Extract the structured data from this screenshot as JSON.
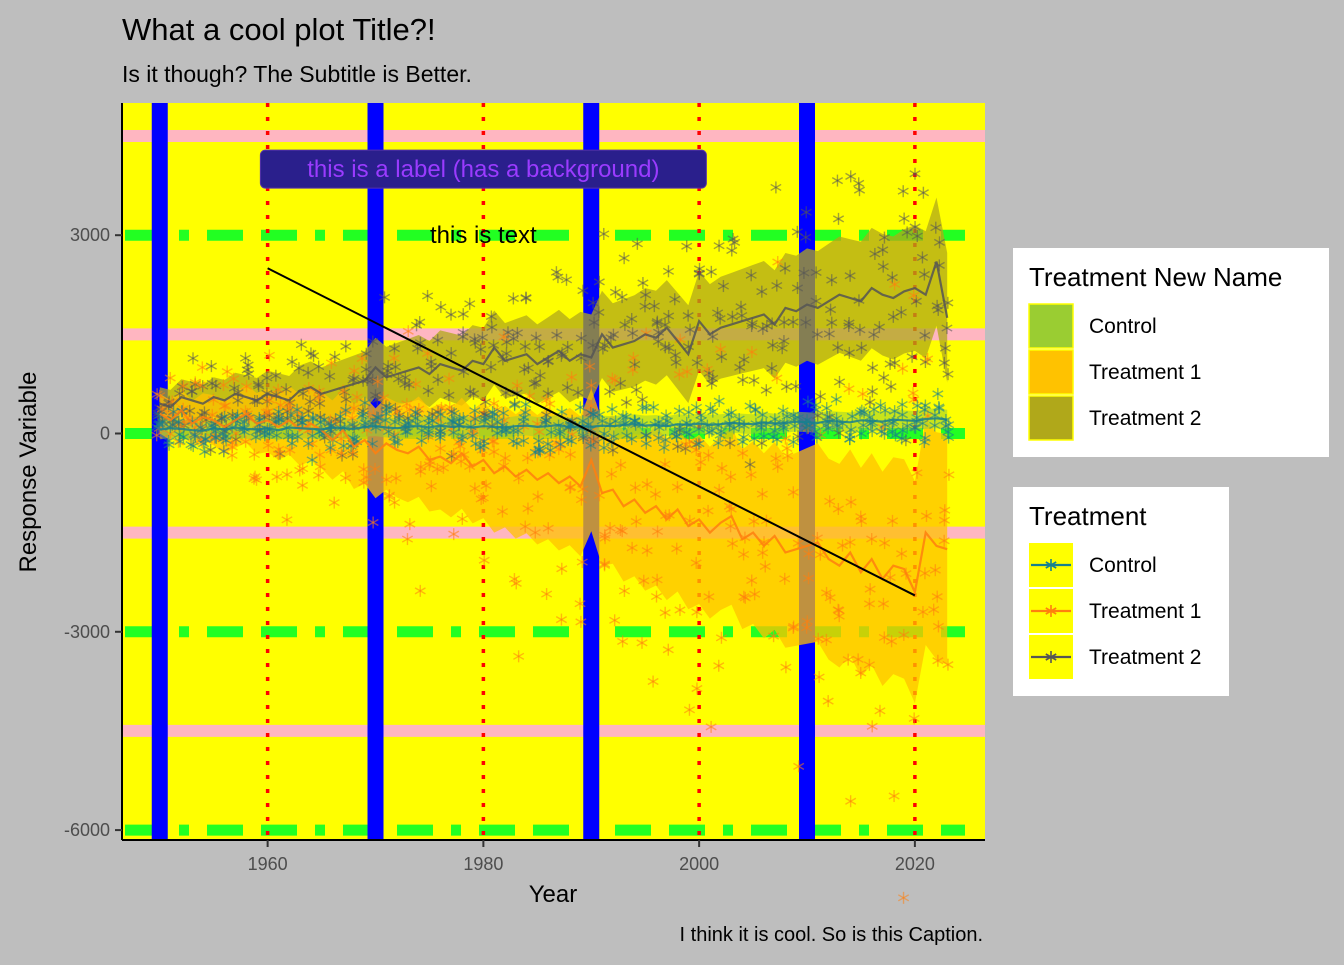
{
  "chart_data": {
    "type": "line",
    "title": "What a cool plot Title?!",
    "subtitle": "Is it though? The Subtitle is Better.",
    "caption": "I think it is cool. So is this Caption.",
    "xlabel": "Year",
    "ylabel": "Response Variable",
    "xlim": [
      1946.5,
      2026.5
    ],
    "ylim": [
      -6150,
      5000
    ],
    "x_ticks": [
      1960,
      1980,
      2000,
      2020
    ],
    "y_ticks": [
      3000,
      0,
      -3000,
      -6000
    ],
    "colors": {
      "plot_background": "#ffff00",
      "page_background": "#bebebe",
      "blue_band": "#0000ff",
      "pink_line": "#ffb6c1",
      "green_dash": "#22ff22",
      "red_dot": "#ff0000",
      "control": "#17808e",
      "treatment1": "#ff7f0e",
      "treatment2": "#555555",
      "fill_control": "#9acd32",
      "fill_treatment1": "#ffc200",
      "fill_treatment2": "#b0a81a"
    },
    "reference_lines": {
      "blue_vertical_x": [
        1950,
        1970,
        1990,
        2010
      ],
      "red_dotted_vertical_x": [
        1960,
        1980,
        2000,
        2020
      ],
      "pink_horizontal_y": [
        4500,
        1500,
        -1500,
        -4500
      ],
      "green_dashed_horizontal_y": [
        3000,
        0,
        -3000,
        -6000
      ]
    },
    "trend_segment": {
      "x": [
        1960,
        2020
      ],
      "y": [
        2500,
        -2450
      ]
    },
    "annotations": {
      "label_text": "this is a label (has a background)",
      "label_x": 1980,
      "label_y": 4000,
      "text_text": "this is text",
      "text_x": 1980,
      "text_y": 3000
    },
    "years": [
      1950,
      1951,
      1952,
      1953,
      1954,
      1955,
      1956,
      1957,
      1958,
      1959,
      1960,
      1961,
      1962,
      1963,
      1964,
      1965,
      1966,
      1967,
      1968,
      1969,
      1970,
      1971,
      1972,
      1973,
      1974,
      1975,
      1976,
      1977,
      1978,
      1979,
      1980,
      1981,
      1982,
      1983,
      1984,
      1985,
      1986,
      1987,
      1988,
      1989,
      1990,
      1991,
      1992,
      1993,
      1994,
      1995,
      1996,
      1997,
      1998,
      1999,
      2000,
      2001,
      2002,
      2003,
      2004,
      2005,
      2006,
      2007,
      2008,
      2009,
      2010,
      2011,
      2012,
      2013,
      2014,
      2015,
      2016,
      2017,
      2018,
      2019,
      2020,
      2021,
      2022,
      2023
    ],
    "series": [
      {
        "name": "Control",
        "values": [
          60,
          80,
          70,
          50,
          40,
          80,
          60,
          90,
          70,
          60,
          80,
          50,
          90,
          80,
          70,
          60,
          90,
          80,
          70,
          100,
          110,
          90,
          80,
          100,
          110,
          90,
          120,
          100,
          110,
          90,
          110,
          100,
          90,
          110,
          120,
          100,
          110,
          130,
          90,
          110,
          100,
          120,
          110,
          130,
          140,
          120,
          130,
          110,
          140,
          130,
          150,
          130,
          140,
          160,
          150,
          140,
          170,
          150,
          160,
          180,
          170,
          160,
          190,
          180,
          170,
          200,
          190,
          180,
          210,
          200,
          190,
          220,
          230,
          210
        ],
        "band_halfwidth": [
          150,
          150,
          150,
          150,
          150,
          150,
          150,
          150,
          150,
          150,
          150,
          150,
          150,
          150,
          150,
          150,
          150,
          150,
          150,
          150,
          150,
          150,
          150,
          150,
          150,
          150,
          150,
          150,
          150,
          150,
          150,
          150,
          150,
          150,
          150,
          150,
          150,
          150,
          150,
          150,
          150,
          150,
          150,
          150,
          150,
          150,
          150,
          150,
          150,
          150,
          150,
          150,
          150,
          150,
          150,
          150,
          150,
          150,
          150,
          150,
          150,
          150,
          150,
          150,
          150,
          150,
          150,
          150,
          150,
          150,
          150,
          150,
          150,
          150
        ]
      },
      {
        "name": "Treatment 1",
        "values": [
          300,
          200,
          350,
          150,
          250,
          200,
          100,
          200,
          300,
          150,
          200,
          100,
          200,
          50,
          150,
          50,
          -100,
          50,
          -200,
          -100,
          -300,
          -150,
          -250,
          -300,
          -200,
          -400,
          -350,
          -450,
          -300,
          -500,
          -400,
          -600,
          -500,
          -650,
          -550,
          -700,
          -600,
          -750,
          -650,
          -800,
          -400,
          -900,
          -850,
          -1100,
          -1000,
          -1200,
          -1100,
          -1300,
          -1150,
          -1400,
          -1300,
          -1500,
          -1350,
          -1250,
          -1600,
          -1500,
          -1700,
          -1550,
          -1800,
          -1750,
          -1700,
          -1650,
          -1900,
          -2000,
          -1800,
          -2100,
          -1900,
          -2200,
          -2000,
          -2050,
          -2400,
          -1500,
          -1700,
          -1750
        ],
        "band_halfwidth": [
          300,
          300,
          320,
          340,
          360,
          380,
          400,
          420,
          440,
          460,
          480,
          500,
          520,
          540,
          560,
          580,
          600,
          620,
          640,
          660,
          680,
          700,
          720,
          740,
          760,
          780,
          800,
          820,
          840,
          860,
          880,
          900,
          920,
          940,
          960,
          980,
          1000,
          1020,
          1040,
          1060,
          1080,
          1100,
          1120,
          1140,
          1160,
          1180,
          1200,
          1220,
          1240,
          1260,
          1280,
          1300,
          1320,
          1340,
          1360,
          1380,
          1400,
          1420,
          1440,
          1460,
          1480,
          1500,
          1520,
          1540,
          1560,
          1580,
          1600,
          1620,
          1640,
          1660,
          1680,
          1700,
          1720,
          1740
        ]
      },
      {
        "name": "Treatment 2",
        "values": [
          450,
          400,
          550,
          500,
          450,
          550,
          500,
          600,
          550,
          500,
          600,
          550,
          500,
          650,
          700,
          600,
          650,
          700,
          750,
          800,
          1000,
          850,
          900,
          950,
          1000,
          900,
          1050,
          1000,
          950,
          1100,
          1050,
          1300,
          1100,
          1150,
          1200,
          1050,
          1150,
          1250,
          1100,
          1200,
          1150,
          1500,
          1300,
          1350,
          1400,
          1500,
          1450,
          1600,
          1400,
          1200,
          1700,
          1500,
          1600,
          1650,
          1700,
          1750,
          1800,
          1650,
          1900,
          1850,
          1950,
          1900,
          2000,
          2100,
          2050,
          2000,
          2200,
          2100,
          2050,
          2150,
          2200,
          2100,
          2600,
          1750
        ],
        "band_halfwidth": [
          250,
          260,
          270,
          280,
          290,
          300,
          310,
          320,
          330,
          340,
          350,
          360,
          370,
          380,
          390,
          400,
          410,
          420,
          430,
          440,
          450,
          460,
          470,
          480,
          490,
          500,
          510,
          520,
          530,
          540,
          550,
          560,
          570,
          580,
          590,
          600,
          610,
          620,
          630,
          640,
          650,
          660,
          670,
          680,
          690,
          700,
          710,
          720,
          730,
          740,
          750,
          760,
          770,
          780,
          790,
          800,
          810,
          820,
          830,
          840,
          850,
          860,
          870,
          880,
          890,
          900,
          910,
          920,
          930,
          940,
          950,
          960,
          970,
          980
        ]
      }
    ],
    "legends": [
      {
        "title": "Treatment New Name",
        "kind": "fill",
        "items": [
          {
            "label": "Control",
            "color": "#9acd32"
          },
          {
            "label": "Treatment 1",
            "color": "#ffc200"
          },
          {
            "label": "Treatment 2",
            "color": "#b0a81a"
          }
        ]
      },
      {
        "title": "Treatment",
        "kind": "line",
        "items": [
          {
            "label": "Control",
            "color": "#17808e"
          },
          {
            "label": "Treatment 1",
            "color": "#ff7f0e"
          },
          {
            "label": "Treatment 2",
            "color": "#555555"
          }
        ]
      }
    ],
    "legend_position": "right"
  }
}
